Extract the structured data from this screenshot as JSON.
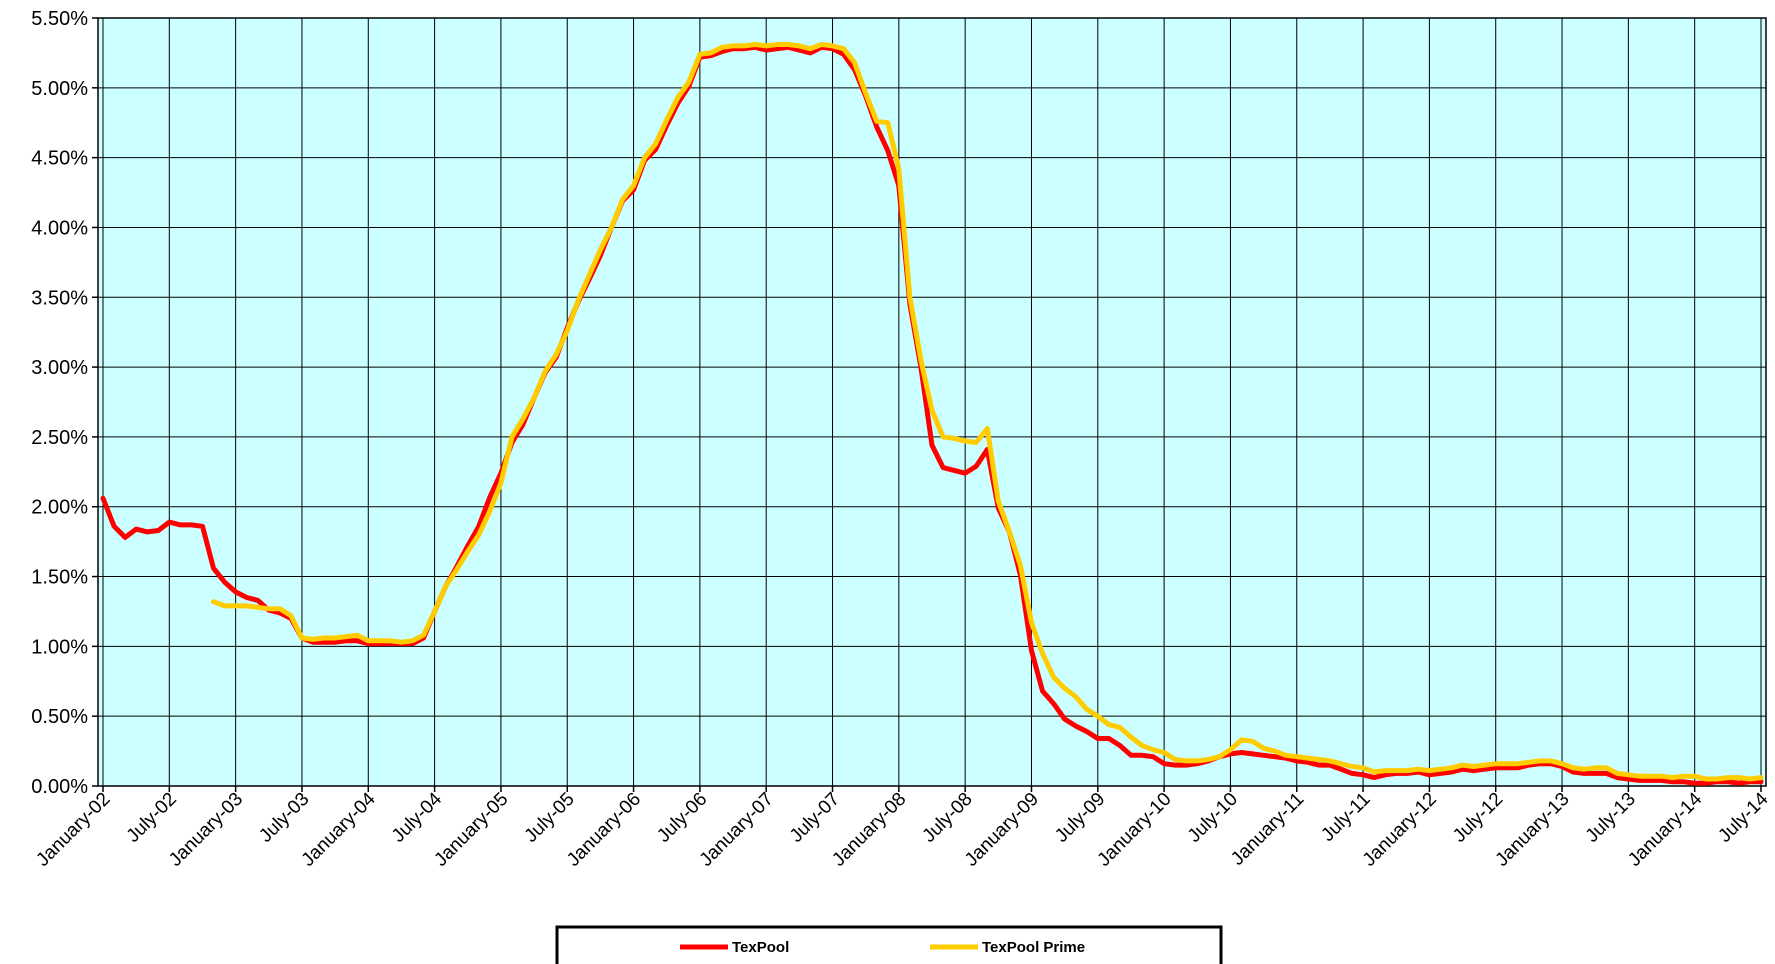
{
  "chart_data": {
    "type": "line",
    "title": "",
    "xlabel": "",
    "ylabel": "",
    "ylim": [
      0,
      5.5
    ],
    "y_ticks": [
      "0.00%",
      "0.50%",
      "1.00%",
      "1.50%",
      "2.00%",
      "2.50%",
      "3.00%",
      "3.50%",
      "4.00%",
      "4.50%",
      "5.00%",
      "5.50%"
    ],
    "x_ticks": [
      "January-02",
      "July-02",
      "January-03",
      "July-03",
      "January-04",
      "July-04",
      "January-05",
      "July-05",
      "January-06",
      "July-06",
      "January-07",
      "July-07",
      "January-08",
      "July-08",
      "January-09",
      "July-09",
      "January-10",
      "July-10",
      "January-11",
      "July-11",
      "January-12",
      "July-12",
      "January-13",
      "July-13",
      "January-14",
      "July-14"
    ],
    "grid": true,
    "legend_position": "bottom",
    "background_color": "#ccffff",
    "x_start": "January-02",
    "x_end": "July-14",
    "series": [
      {
        "name": "TexPool",
        "color": "#ff0000",
        "values": [
          2.06,
          1.86,
          1.78,
          1.84,
          1.82,
          1.83,
          1.89,
          1.87,
          1.87,
          1.86,
          1.56,
          1.46,
          1.39,
          1.35,
          1.33,
          1.26,
          1.24,
          1.2,
          1.06,
          1.03,
          1.03,
          1.03,
          1.04,
          1.04,
          1.02,
          1.02,
          1.02,
          1.02,
          1.02,
          1.06,
          1.25,
          1.43,
          1.57,
          1.72,
          1.86,
          2.07,
          2.24,
          2.46,
          2.59,
          2.78,
          2.96,
          3.07,
          3.28,
          3.47,
          3.63,
          3.8,
          4.0,
          4.19,
          4.27,
          4.48,
          4.56,
          4.73,
          4.89,
          5.01,
          5.22,
          5.23,
          5.26,
          5.28,
          5.28,
          5.29,
          5.27,
          5.28,
          5.29,
          5.27,
          5.25,
          5.29,
          5.28,
          5.24,
          5.13,
          4.94,
          4.72,
          4.55,
          4.3,
          3.45,
          3.0,
          2.44,
          2.28,
          2.26,
          2.24,
          2.29,
          2.41,
          1.99,
          1.82,
          1.51,
          0.97,
          0.68,
          0.59,
          0.48,
          0.43,
          0.39,
          0.34,
          0.34,
          0.29,
          0.22,
          0.22,
          0.21,
          0.16,
          0.15,
          0.15,
          0.16,
          0.18,
          0.21,
          0.23,
          0.24,
          0.23,
          0.22,
          0.21,
          0.2,
          0.18,
          0.17,
          0.15,
          0.15,
          0.12,
          0.09,
          0.08,
          0.06,
          0.08,
          0.09,
          0.09,
          0.1,
          0.08,
          0.09,
          0.1,
          0.12,
          0.11,
          0.12,
          0.13,
          0.13,
          0.13,
          0.15,
          0.16,
          0.16,
          0.14,
          0.1,
          0.09,
          0.09,
          0.09,
          0.06,
          0.05,
          0.04,
          0.04,
          0.04,
          0.03,
          0.03,
          0.02,
          0.02,
          0.03,
          0.03,
          0.02,
          0.03,
          0.03
        ]
      },
      {
        "name": "TexPool Prime",
        "color": "#ffcc00",
        "start_index": 10,
        "values": [
          1.32,
          1.29,
          1.29,
          1.29,
          1.28,
          1.27,
          1.27,
          1.22,
          1.06,
          1.05,
          1.06,
          1.06,
          1.07,
          1.08,
          1.04,
          1.04,
          1.04,
          1.03,
          1.04,
          1.08,
          1.25,
          1.43,
          1.55,
          1.68,
          1.8,
          1.97,
          2.17,
          2.5,
          2.63,
          2.78,
          2.97,
          3.09,
          3.26,
          3.48,
          3.66,
          3.84,
          4.0,
          4.2,
          4.3,
          4.5,
          4.6,
          4.77,
          4.93,
          5.04,
          5.24,
          5.25,
          5.29,
          5.3,
          5.3,
          5.31,
          5.3,
          5.31,
          5.31,
          5.3,
          5.28,
          5.31,
          5.3,
          5.28,
          5.18,
          4.96,
          4.76,
          4.75,
          4.42,
          3.5,
          3.05,
          2.69,
          2.5,
          2.49,
          2.47,
          2.46,
          2.56,
          2.04,
          1.82,
          1.58,
          1.17,
          0.95,
          0.78,
          0.7,
          0.64,
          0.55,
          0.5,
          0.44,
          0.42,
          0.35,
          0.29,
          0.26,
          0.24,
          0.19,
          0.18,
          0.18,
          0.19,
          0.21,
          0.26,
          0.33,
          0.32,
          0.27,
          0.25,
          0.22,
          0.21,
          0.2,
          0.19,
          0.18,
          0.16,
          0.14,
          0.13,
          0.1,
          0.11,
          0.11,
          0.11,
          0.12,
          0.11,
          0.12,
          0.13,
          0.15,
          0.14,
          0.15,
          0.16,
          0.16,
          0.16,
          0.17,
          0.18,
          0.18,
          0.16,
          0.13,
          0.12,
          0.13,
          0.13,
          0.09,
          0.08,
          0.07,
          0.07,
          0.07,
          0.06,
          0.07,
          0.07,
          0.05,
          0.05,
          0.06,
          0.06,
          0.05,
          0.06
        ]
      }
    ]
  }
}
